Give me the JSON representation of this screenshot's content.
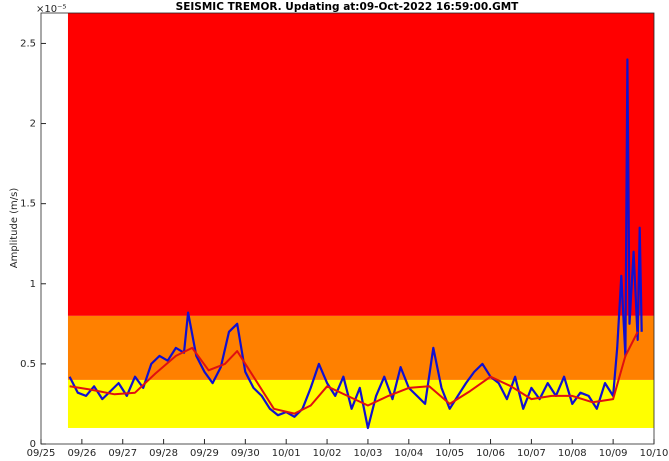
{
  "chart_data": {
    "type": "line",
    "title": "SEISMIC TREMOR. Updating at:09-Oct-2022 16:59:00.GMT",
    "ylabel": "Amplitude (m/s)",
    "exponent": "×10⁻⁵",
    "xlim": [
      0,
      15
    ],
    "xticks": [
      {
        "value": 0,
        "label": "09/25"
      },
      {
        "value": 1,
        "label": "09/26"
      },
      {
        "value": 2,
        "label": "09/27"
      },
      {
        "value": 3,
        "label": "09/28"
      },
      {
        "value": 4,
        "label": "09/29"
      },
      {
        "value": 5,
        "label": "09/30"
      },
      {
        "value": 6,
        "label": "10/01"
      },
      {
        "value": 7,
        "label": "10/02"
      },
      {
        "value": 8,
        "label": "10/03"
      },
      {
        "value": 9,
        "label": "10/04"
      },
      {
        "value": 10,
        "label": "10/05"
      },
      {
        "value": 11,
        "label": "10/06"
      },
      {
        "value": 12,
        "label": "10/07"
      },
      {
        "value": 13,
        "label": "10/08"
      },
      {
        "value": 14,
        "label": "10/09"
      },
      {
        "value": 15,
        "label": "10/10"
      }
    ],
    "ylim": [
      0,
      2.69
    ],
    "yticks": [
      0,
      0.5,
      1,
      1.5,
      2,
      2.5
    ],
    "bands": [
      {
        "x_from": 0.66,
        "from": 0.1,
        "to": 0.4,
        "color": "#ffff00"
      },
      {
        "x_from": 0.66,
        "from": 0.4,
        "to": 0.8,
        "color": "#ff8000"
      },
      {
        "x_from": 0.66,
        "from": 0.8,
        "to": 2.69,
        "color": "#ff0000"
      }
    ],
    "series": [
      {
        "color": "#1010d0",
        "width": 2.2,
        "x": [
          0.7,
          0.9,
          1.1,
          1.3,
          1.5,
          1.7,
          1.9,
          2.1,
          2.3,
          2.5,
          2.7,
          2.9,
          3.1,
          3.3,
          3.5,
          3.6,
          3.8,
          4.0,
          4.2,
          4.4,
          4.6,
          4.8,
          5.0,
          5.2,
          5.4,
          5.6,
          5.8,
          6.0,
          6.2,
          6.4,
          6.6,
          6.8,
          7.0,
          7.2,
          7.4,
          7.6,
          7.8,
          8.0,
          8.2,
          8.4,
          8.6,
          8.8,
          9.0,
          9.2,
          9.4,
          9.6,
          9.8,
          10.0,
          10.2,
          10.4,
          10.6,
          10.8,
          11.0,
          11.2,
          11.4,
          11.6,
          11.8,
          12.0,
          12.2,
          12.4,
          12.6,
          12.8,
          13.0,
          13.2,
          13.4,
          13.6,
          13.8,
          14.0,
          14.1,
          14.2,
          14.3,
          14.35,
          14.4,
          14.5,
          14.6,
          14.65,
          14.7
        ],
        "values": [
          0.42,
          0.32,
          0.3,
          0.36,
          0.28,
          0.33,
          0.38,
          0.3,
          0.42,
          0.35,
          0.5,
          0.55,
          0.52,
          0.6,
          0.57,
          0.82,
          0.55,
          0.45,
          0.38,
          0.48,
          0.7,
          0.75,
          0.45,
          0.35,
          0.3,
          0.22,
          0.18,
          0.2,
          0.17,
          0.22,
          0.35,
          0.5,
          0.38,
          0.3,
          0.42,
          0.22,
          0.35,
          0.1,
          0.3,
          0.42,
          0.28,
          0.48,
          0.35,
          0.3,
          0.25,
          0.6,
          0.35,
          0.22,
          0.3,
          0.38,
          0.45,
          0.5,
          0.42,
          0.38,
          0.28,
          0.42,
          0.22,
          0.35,
          0.28,
          0.38,
          0.3,
          0.42,
          0.25,
          0.32,
          0.3,
          0.22,
          0.38,
          0.3,
          0.6,
          1.05,
          0.55,
          2.4,
          0.75,
          1.2,
          0.65,
          1.35,
          0.7
        ]
      },
      {
        "color": "#e01010",
        "width": 2,
        "x": [
          0.7,
          1.2,
          1.8,
          2.3,
          2.8,
          3.3,
          3.7,
          4.1,
          4.5,
          4.8,
          5.2,
          5.7,
          6.2,
          6.6,
          7.0,
          7.5,
          8.0,
          8.5,
          9.0,
          9.5,
          10.0,
          10.5,
          11.0,
          11.5,
          12.0,
          12.5,
          13.0,
          13.5,
          14.0,
          14.3,
          14.6
        ],
        "values": [
          0.36,
          0.34,
          0.31,
          0.32,
          0.44,
          0.55,
          0.6,
          0.46,
          0.5,
          0.58,
          0.42,
          0.22,
          0.19,
          0.24,
          0.36,
          0.3,
          0.24,
          0.3,
          0.35,
          0.36,
          0.25,
          0.33,
          0.42,
          0.36,
          0.28,
          0.3,
          0.3,
          0.26,
          0.28,
          0.55,
          0.7
        ]
      }
    ]
  }
}
